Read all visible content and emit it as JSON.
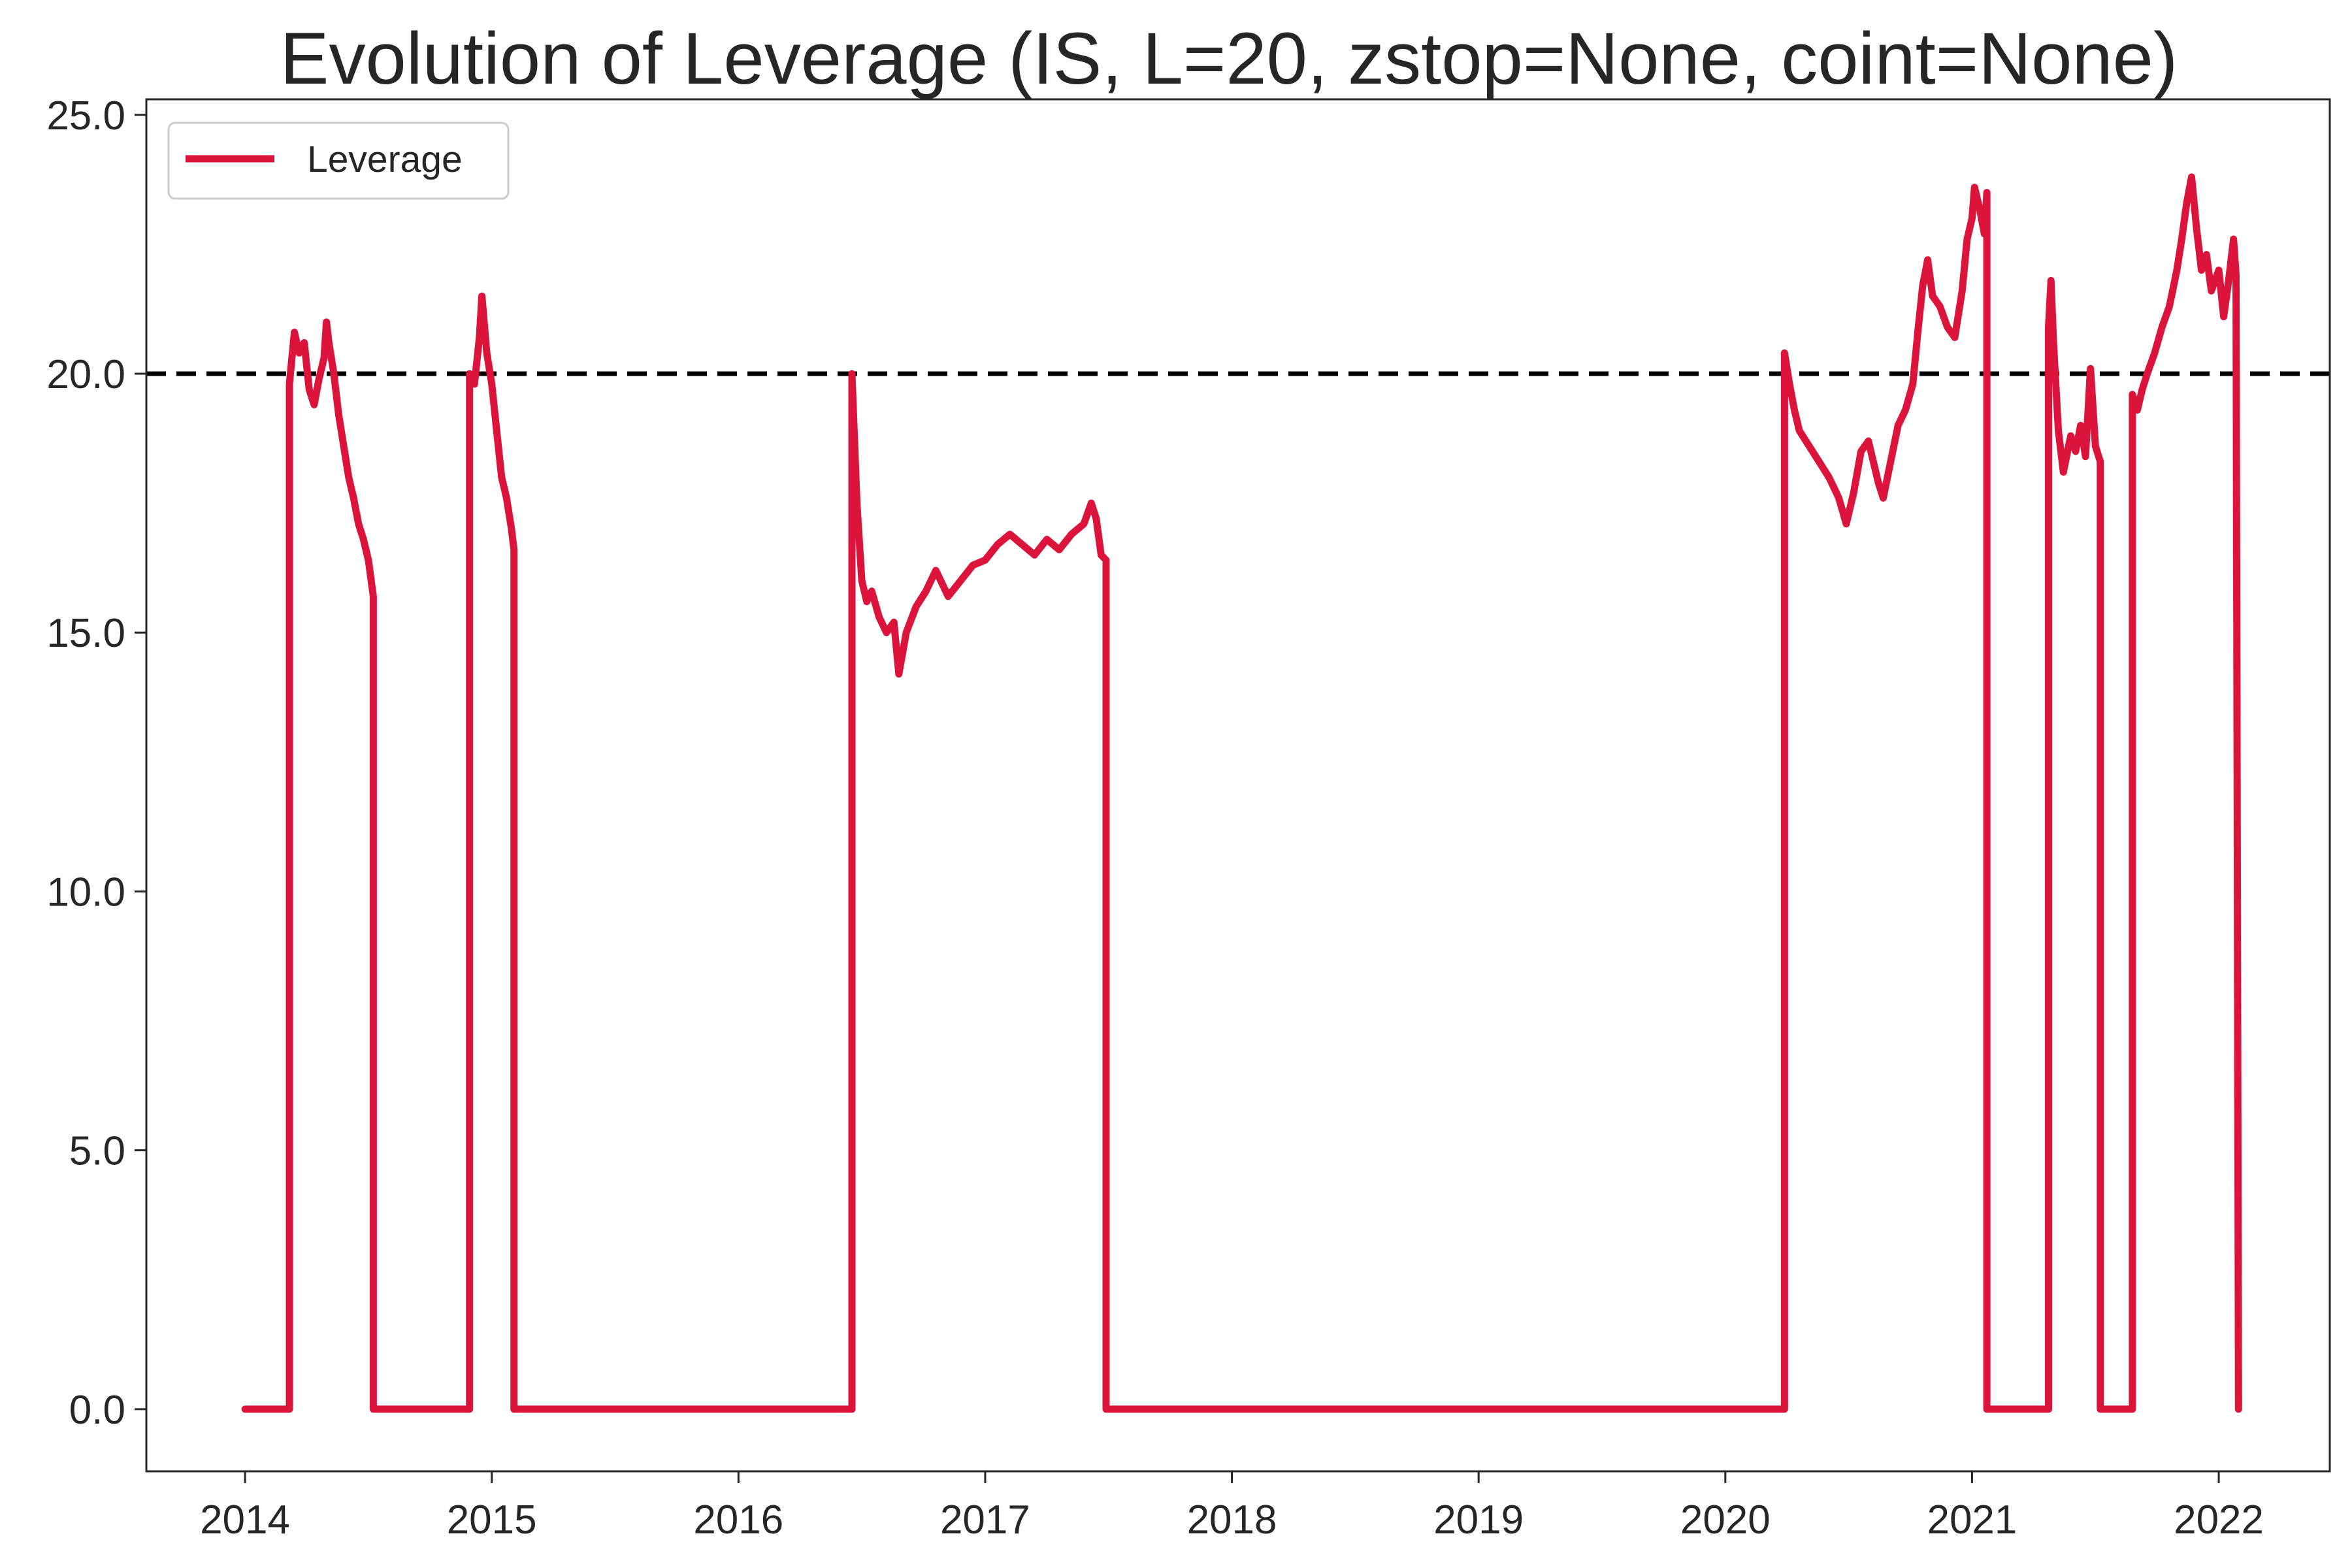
{
  "chart_data": {
    "type": "line",
    "title": "Evolution of Leverage (IS, L=20, zstop=None, coint=None)",
    "xlabel": "",
    "ylabel": "",
    "xlim": [
      2013.6,
      2022.45
    ],
    "ylim": [
      -1.2,
      25.3
    ],
    "x_ticks": [
      2014,
      2015,
      2016,
      2017,
      2018,
      2019,
      2020,
      2021,
      2022
    ],
    "x_tick_labels": [
      "2014",
      "2015",
      "2016",
      "2017",
      "2018",
      "2019",
      "2020",
      "2021",
      "2022"
    ],
    "y_ticks": [
      0,
      5,
      10,
      15,
      20,
      25
    ],
    "y_tick_labels": [
      "0.0",
      "5.0",
      "10.0",
      "15.0",
      "20.0",
      "25.0"
    ],
    "grid": false,
    "legend": {
      "placement": "upper-left",
      "entries": [
        "Leverage"
      ]
    },
    "reference_line": {
      "y": 20.0,
      "style": "dashed",
      "color": "#000000"
    },
    "colors": {
      "series": "#DC143C",
      "axes": "#262626",
      "reference": "#000000"
    },
    "series": [
      {
        "name": "Leverage",
        "color": "#DC143C",
        "points": [
          [
            2014.0,
            0.0
          ],
          [
            2014.18,
            0.0
          ],
          [
            2014.18,
            19.8
          ],
          [
            2014.2,
            20.8
          ],
          [
            2014.22,
            20.4
          ],
          [
            2014.24,
            20.6
          ],
          [
            2014.26,
            19.7
          ],
          [
            2014.28,
            19.4
          ],
          [
            2014.3,
            19.9
          ],
          [
            2014.32,
            20.3
          ],
          [
            2014.33,
            21.0
          ],
          [
            2014.34,
            20.6
          ],
          [
            2014.36,
            20.0
          ],
          [
            2014.38,
            19.2
          ],
          [
            2014.4,
            18.6
          ],
          [
            2014.42,
            18.0
          ],
          [
            2014.44,
            17.6
          ],
          [
            2014.46,
            17.1
          ],
          [
            2014.48,
            16.8
          ],
          [
            2014.5,
            16.4
          ],
          [
            2014.52,
            15.7
          ],
          [
            2014.52,
            0.0
          ],
          [
            2014.91,
            0.0
          ],
          [
            2014.91,
            20.0
          ],
          [
            2014.93,
            19.8
          ],
          [
            2014.95,
            20.7
          ],
          [
            2014.96,
            21.5
          ],
          [
            2014.98,
            20.4
          ],
          [
            2015.0,
            19.8
          ],
          [
            2015.02,
            18.9
          ],
          [
            2015.04,
            18.0
          ],
          [
            2015.06,
            17.6
          ],
          [
            2015.08,
            17.0
          ],
          [
            2015.09,
            16.6
          ],
          [
            2015.09,
            0.0
          ],
          [
            2016.46,
            0.0
          ],
          [
            2016.46,
            20.0
          ],
          [
            2016.48,
            17.5
          ],
          [
            2016.5,
            16.0
          ],
          [
            2016.52,
            15.6
          ],
          [
            2016.54,
            15.8
          ],
          [
            2016.57,
            15.3
          ],
          [
            2016.6,
            15.0
          ],
          [
            2016.63,
            15.2
          ],
          [
            2016.65,
            14.2
          ],
          [
            2016.68,
            15.0
          ],
          [
            2016.72,
            15.5
          ],
          [
            2016.76,
            15.8
          ],
          [
            2016.8,
            16.2
          ],
          [
            2016.85,
            15.7
          ],
          [
            2016.9,
            16.0
          ],
          [
            2016.95,
            16.3
          ],
          [
            2017.0,
            16.4
          ],
          [
            2017.05,
            16.7
          ],
          [
            2017.1,
            16.9
          ],
          [
            2017.15,
            16.7
          ],
          [
            2017.2,
            16.5
          ],
          [
            2017.25,
            16.8
          ],
          [
            2017.3,
            16.6
          ],
          [
            2017.35,
            16.9
          ],
          [
            2017.4,
            17.1
          ],
          [
            2017.43,
            17.5
          ],
          [
            2017.45,
            17.2
          ],
          [
            2017.47,
            16.5
          ],
          [
            2017.49,
            16.4
          ],
          [
            2017.49,
            0.0
          ],
          [
            2020.24,
            0.0
          ],
          [
            2020.24,
            20.4
          ],
          [
            2020.26,
            19.8
          ],
          [
            2020.28,
            19.3
          ],
          [
            2020.3,
            18.9
          ],
          [
            2020.34,
            18.6
          ],
          [
            2020.38,
            18.3
          ],
          [
            2020.42,
            18.0
          ],
          [
            2020.46,
            17.6
          ],
          [
            2020.49,
            17.1
          ],
          [
            2020.52,
            17.7
          ],
          [
            2020.55,
            18.5
          ],
          [
            2020.58,
            18.7
          ],
          [
            2020.62,
            17.9
          ],
          [
            2020.64,
            17.6
          ],
          [
            2020.67,
            18.3
          ],
          [
            2020.7,
            19.0
          ],
          [
            2020.73,
            19.3
          ],
          [
            2020.76,
            19.8
          ],
          [
            2020.78,
            20.8
          ],
          [
            2020.8,
            21.7
          ],
          [
            2020.82,
            22.2
          ],
          [
            2020.84,
            21.5
          ],
          [
            2020.87,
            21.3
          ],
          [
            2020.9,
            20.9
          ],
          [
            2020.93,
            20.7
          ],
          [
            2020.96,
            21.6
          ],
          [
            2020.98,
            22.6
          ],
          [
            2021.0,
            23.0
          ],
          [
            2021.01,
            23.6
          ],
          [
            2021.03,
            23.2
          ],
          [
            2021.05,
            22.7
          ],
          [
            2021.06,
            23.5
          ],
          [
            2021.06,
            0.0
          ],
          [
            2021.31,
            0.0
          ],
          [
            2021.31,
            20.9
          ],
          [
            2021.32,
            21.8
          ],
          [
            2021.33,
            20.6
          ],
          [
            2021.35,
            18.9
          ],
          [
            2021.37,
            18.1
          ],
          [
            2021.4,
            18.8
          ],
          [
            2021.42,
            18.5
          ],
          [
            2021.44,
            19.0
          ],
          [
            2021.46,
            18.4
          ],
          [
            2021.48,
            20.1
          ],
          [
            2021.5,
            18.6
          ],
          [
            2021.52,
            18.3
          ],
          [
            2021.52,
            0.0
          ],
          [
            2021.65,
            0.0
          ],
          [
            2021.65,
            19.6
          ],
          [
            2021.67,
            19.3
          ],
          [
            2021.69,
            19.7
          ],
          [
            2021.71,
            20.0
          ],
          [
            2021.74,
            20.4
          ],
          [
            2021.77,
            20.9
          ],
          [
            2021.8,
            21.3
          ],
          [
            2021.83,
            22.0
          ],
          [
            2021.85,
            22.6
          ],
          [
            2021.87,
            23.3
          ],
          [
            2021.89,
            23.8
          ],
          [
            2021.91,
            22.8
          ],
          [
            2021.93,
            22.0
          ],
          [
            2021.95,
            22.3
          ],
          [
            2021.97,
            21.6
          ],
          [
            2022.0,
            22.0
          ],
          [
            2022.02,
            21.1
          ],
          [
            2022.04,
            21.8
          ],
          [
            2022.06,
            22.6
          ],
          [
            2022.07,
            21.9
          ],
          [
            2022.08,
            0.0
          ]
        ]
      }
    ]
  }
}
